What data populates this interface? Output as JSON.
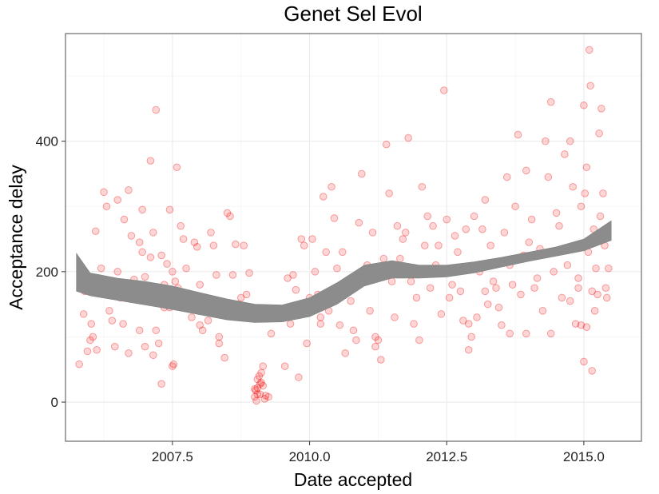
{
  "chart_data": {
    "type": "scatter",
    "title": "Genet Sel Evol",
    "xlabel": "Date accepted",
    "ylabel": "Acceptance delay",
    "xlim": [
      2005.55,
      2016.05
    ],
    "ylim": [
      -60,
      565
    ],
    "x_ticks": [
      2007.5,
      2010.0,
      2012.5,
      2015.0
    ],
    "x_tick_labels": [
      "2007.5",
      "2010.0",
      "2012.5",
      "2015.0"
    ],
    "y_ticks": [
      0,
      200,
      400
    ],
    "y_tick_labels": [
      "0",
      "200",
      "400"
    ],
    "grid": true,
    "point_color": "#ff0000",
    "band_color": "#8c8c8c",
    "smooth_band": {
      "x": [
        2005.75,
        2006.0,
        2006.5,
        2007.0,
        2007.5,
        2008.0,
        2008.5,
        2009.0,
        2009.5,
        2010.0,
        2010.5,
        2011.0,
        2011.5,
        2012.0,
        2012.5,
        2013.0,
        2013.5,
        2014.0,
        2014.5,
        2015.0,
        2015.5
      ],
      "lower": [
        170,
        163,
        156,
        149,
        142,
        134,
        126,
        122,
        123,
        131,
        150,
        178,
        190,
        190,
        192,
        198,
        207,
        216,
        224,
        232,
        248
      ],
      "upper": [
        228,
        198,
        190,
        185,
        178,
        168,
        158,
        150,
        149,
        160,
        183,
        210,
        217,
        210,
        210,
        215,
        222,
        230,
        238,
        250,
        278
      ]
    },
    "points": [
      [
        2005.8,
        58
      ],
      [
        2005.85,
        175
      ],
      [
        2005.88,
        135
      ],
      [
        2005.9,
        170
      ],
      [
        2005.95,
        78
      ],
      [
        2006.0,
        95
      ],
      [
        2006.02,
        120
      ],
      [
        2006.05,
        100
      ],
      [
        2006.08,
        185
      ],
      [
        2006.1,
        262
      ],
      [
        2006.15,
        168
      ],
      [
        2006.2,
        205
      ],
      [
        2006.25,
        322
      ],
      [
        2006.3,
        185
      ],
      [
        2006.35,
        140
      ],
      [
        2006.4,
        125
      ],
      [
        2006.45,
        180
      ],
      [
        2006.5,
        200
      ],
      [
        2006.5,
        310
      ],
      [
        2006.55,
        160
      ],
      [
        2006.6,
        120
      ],
      [
        2006.62,
        280
      ],
      [
        2006.7,
        325
      ],
      [
        2006.75,
        255
      ],
      [
        2006.8,
        188
      ],
      [
        2006.85,
        175
      ],
      [
        2006.9,
        245
      ],
      [
        2006.95,
        230
      ],
      [
        2007.0,
        192
      ],
      [
        2007.05,
        168
      ],
      [
        2007.1,
        222
      ],
      [
        2007.15,
        260
      ],
      [
        2007.2,
        110
      ],
      [
        2007.25,
        90
      ],
      [
        2007.3,
        225
      ],
      [
        2007.35,
        180
      ],
      [
        2007.4,
        212
      ],
      [
        2007.45,
        145
      ],
      [
        2007.5,
        200
      ],
      [
        2007.55,
        185
      ],
      [
        2007.6,
        175
      ],
      [
        2007.65,
        270
      ],
      [
        2007.7,
        250
      ],
      [
        2007.75,
        205
      ],
      [
        2007.8,
        160
      ],
      [
        2007.85,
        130
      ],
      [
        2007.9,
        245
      ],
      [
        2007.95,
        238
      ],
      [
        2008.0,
        180
      ],
      [
        2008.05,
        110
      ],
      [
        2008.1,
        150
      ],
      [
        2008.15,
        125
      ],
      [
        2008.2,
        260
      ],
      [
        2008.25,
        240
      ],
      [
        2008.3,
        195
      ],
      [
        2008.35,
        90
      ],
      [
        2008.4,
        140
      ],
      [
        2008.45,
        68
      ],
      [
        2008.5,
        290
      ],
      [
        2008.55,
        285
      ],
      [
        2008.6,
        195
      ],
      [
        2008.65,
        242
      ],
      [
        2008.7,
        150
      ],
      [
        2008.75,
        160
      ],
      [
        2008.8,
        240
      ],
      [
        2008.85,
        165
      ],
      [
        2008.9,
        198
      ],
      [
        2006.12,
        80
      ],
      [
        2006.7,
        75
      ],
      [
        2007.0,
        85
      ],
      [
        2007.15,
        72
      ],
      [
        2007.3,
        28
      ],
      [
        2007.5,
        55
      ],
      [
        2007.52,
        58
      ],
      [
        2007.58,
        360
      ],
      [
        2007.2,
        448
      ],
      [
        2007.1,
        370
      ],
      [
        2006.45,
        85
      ],
      [
        2006.9,
        110
      ],
      [
        2007.35,
        145
      ],
      [
        2006.3,
        300
      ],
      [
        2006.95,
        295
      ],
      [
        2007.45,
        295
      ],
      [
        2008.0,
        118
      ],
      [
        2008.35,
        100
      ],
      [
        2009.0,
        20
      ],
      [
        2009.02,
        18
      ],
      [
        2009.05,
        22
      ],
      [
        2009.05,
        35
      ],
      [
        2009.08,
        40
      ],
      [
        2009.1,
        28
      ],
      [
        2009.12,
        45
      ],
      [
        2009.15,
        55
      ],
      [
        2009.0,
        8
      ],
      [
        2009.03,
        2
      ],
      [
        2009.1,
        12
      ],
      [
        2009.2,
        10
      ],
      [
        2009.25,
        8
      ],
      [
        2009.05,
        12
      ],
      [
        2009.12,
        30
      ],
      [
        2009.15,
        25
      ],
      [
        2009.18,
        5
      ],
      [
        2009.3,
        105
      ],
      [
        2009.5,
        140
      ],
      [
        2009.55,
        55
      ],
      [
        2009.6,
        190
      ],
      [
        2009.65,
        120
      ],
      [
        2009.7,
        195
      ],
      [
        2009.75,
        172
      ],
      [
        2009.8,
        38
      ],
      [
        2009.85,
        250
      ],
      [
        2009.9,
        240
      ],
      [
        2009.95,
        90
      ],
      [
        2010.0,
        160
      ],
      [
        2010.05,
        250
      ],
      [
        2010.1,
        200
      ],
      [
        2010.15,
        165
      ],
      [
        2010.2,
        120
      ],
      [
        2010.25,
        315
      ],
      [
        2010.3,
        230
      ],
      [
        2010.35,
        140
      ],
      [
        2010.4,
        330
      ],
      [
        2010.45,
        282
      ],
      [
        2010.5,
        205
      ],
      [
        2010.55,
        118
      ],
      [
        2010.6,
        230
      ],
      [
        2010.65,
        75
      ],
      [
        2010.7,
        185
      ],
      [
        2010.75,
        155
      ],
      [
        2010.8,
        110
      ],
      [
        2010.85,
        95
      ],
      [
        2010.9,
        275
      ],
      [
        2010.95,
        350
      ],
      [
        2011.0,
        190
      ],
      [
        2011.05,
        210
      ],
      [
        2011.1,
        140
      ],
      [
        2011.15,
        260
      ],
      [
        2011.2,
        85
      ],
      [
        2011.25,
        95
      ],
      [
        2011.3,
        65
      ],
      [
        2011.35,
        220
      ],
      [
        2011.4,
        395
      ],
      [
        2011.45,
        320
      ],
      [
        2011.5,
        185
      ],
      [
        2011.55,
        130
      ],
      [
        2011.6,
        270
      ],
      [
        2011.65,
        220
      ],
      [
        2011.7,
        250
      ],
      [
        2011.75,
        260
      ],
      [
        2011.8,
        405
      ],
      [
        2011.85,
        185
      ],
      [
        2011.9,
        120
      ],
      [
        2011.95,
        160
      ],
      [
        2012.0,
        95
      ],
      [
        2012.05,
        330
      ],
      [
        2012.1,
        240
      ],
      [
        2012.15,
        285
      ],
      [
        2012.2,
        175
      ],
      [
        2012.25,
        270
      ],
      [
        2012.3,
        210
      ],
      [
        2012.35,
        240
      ],
      [
        2012.4,
        135
      ],
      [
        2012.45,
        478
      ],
      [
        2012.5,
        280
      ],
      [
        2012.55,
        160
      ],
      [
        2012.6,
        200
      ],
      [
        2012.65,
        255
      ],
      [
        2012.7,
        230
      ],
      [
        2012.75,
        170
      ],
      [
        2012.8,
        125
      ],
      [
        2012.85,
        265
      ],
      [
        2012.9,
        120
      ],
      [
        2012.95,
        100
      ],
      [
        2013.0,
        285
      ],
      [
        2013.05,
        130
      ],
      [
        2013.1,
        200
      ],
      [
        2013.15,
        265
      ],
      [
        2013.2,
        310
      ],
      [
        2013.25,
        150
      ],
      [
        2013.3,
        240
      ],
      [
        2013.35,
        185
      ],
      [
        2013.4,
        175
      ],
      [
        2013.45,
        145
      ],
      [
        2013.5,
        118
      ],
      [
        2013.55,
        260
      ],
      [
        2013.6,
        345
      ],
      [
        2013.65,
        210
      ],
      [
        2013.7,
        180
      ],
      [
        2013.75,
        300
      ],
      [
        2013.8,
        410
      ],
      [
        2013.85,
        165
      ],
      [
        2013.9,
        225
      ],
      [
        2013.95,
        355
      ],
      [
        2014.0,
        245
      ],
      [
        2014.05,
        280
      ],
      [
        2014.1,
        175
      ],
      [
        2014.15,
        190
      ],
      [
        2014.2,
        235
      ],
      [
        2014.25,
        140
      ],
      [
        2014.3,
        400
      ],
      [
        2014.35,
        345
      ],
      [
        2014.4,
        460
      ],
      [
        2014.45,
        200
      ],
      [
        2014.5,
        290
      ],
      [
        2014.55,
        270
      ],
      [
        2014.6,
        160
      ],
      [
        2014.65,
        380
      ],
      [
        2014.7,
        210
      ],
      [
        2014.75,
        400
      ],
      [
        2014.8,
        330
      ],
      [
        2014.85,
        120
      ],
      [
        2014.9,
        175
      ],
      [
        2014.95,
        300
      ],
      [
        2015.0,
        455
      ],
      [
        2015.02,
        320
      ],
      [
        2015.05,
        360
      ],
      [
        2015.08,
        230
      ],
      [
        2015.1,
        540
      ],
      [
        2015.12,
        485
      ],
      [
        2015.15,
        170
      ],
      [
        2015.18,
        265
      ],
      [
        2015.2,
        140
      ],
      [
        2015.22,
        205
      ],
      [
        2015.25,
        165
      ],
      [
        2015.28,
        412
      ],
      [
        2015.3,
        255
      ],
      [
        2015.32,
        450
      ],
      [
        2015.35,
        320
      ],
      [
        2015.38,
        240
      ],
      [
        2015.4,
        175
      ],
      [
        2015.42,
        160
      ],
      [
        2015.45,
        205
      ],
      [
        2015.0,
        62
      ],
      [
        2015.15,
        48
      ],
      [
        2014.95,
        118
      ],
      [
        2015.05,
        115
      ],
      [
        2014.75,
        155
      ],
      [
        2013.2,
        170
      ],
      [
        2012.9,
        80
      ],
      [
        2013.95,
        105
      ],
      [
        2014.4,
        105
      ],
      [
        2011.2,
        100
      ],
      [
        2010.2,
        130
      ],
      [
        2010.9,
        185
      ],
      [
        2012.6,
        180
      ],
      [
        2013.65,
        105
      ],
      [
        2015.3,
        285
      ],
      [
        2014.9,
        190
      ]
    ]
  }
}
